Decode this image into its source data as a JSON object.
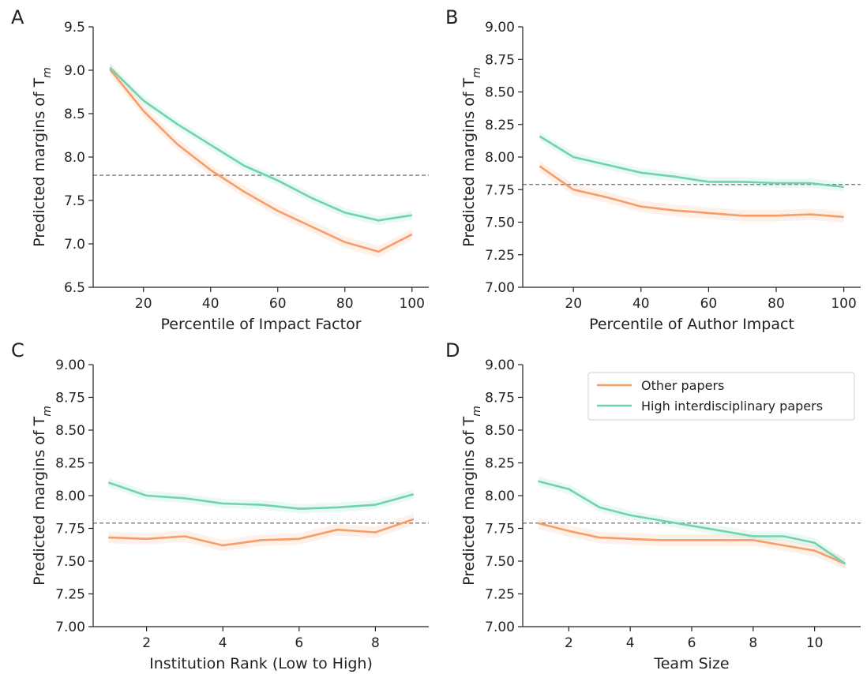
{
  "colors": {
    "other": "#f79d68",
    "high": "#6fd3b0",
    "reference_line": "#808080"
  },
  "legend": {
    "entries": [
      "Other papers",
      "High interdisciplinary papers"
    ],
    "placement": "upper-right of panel D"
  },
  "chart_data": [
    {
      "panel": "A",
      "type": "line",
      "xlabel": "Percentile of Impact Factor",
      "ylabel": "Predicted margins of T",
      "ylabel_sub": "m",
      "xlim": [
        5,
        105
      ],
      "ylim": [
        6.5,
        9.5
      ],
      "xticks": [
        20,
        40,
        60,
        80,
        100
      ],
      "yticks": [
        "6.5",
        "7.0",
        "7.5",
        "8.0",
        "8.5",
        "9.0",
        "9.5"
      ],
      "reference_y": 7.79,
      "x": [
        10,
        20,
        30,
        40,
        50,
        60,
        70,
        80,
        90,
        100
      ],
      "series": [
        {
          "name": "Other papers",
          "values": [
            9.01,
            8.53,
            8.15,
            7.85,
            7.6,
            7.38,
            7.2,
            7.02,
            6.91,
            7.11
          ]
        },
        {
          "name": "High interdisciplinary papers",
          "values": [
            9.03,
            8.65,
            8.38,
            8.14,
            7.9,
            7.73,
            7.53,
            7.36,
            7.27,
            7.33
          ]
        }
      ]
    },
    {
      "panel": "B",
      "type": "line",
      "xlabel": "Percentile of Author Impact",
      "ylabel": "Predicted margins of T",
      "ylabel_sub": "m",
      "xlim": [
        5,
        105
      ],
      "ylim": [
        7.0,
        9.0
      ],
      "xticks": [
        20,
        40,
        60,
        80,
        100
      ],
      "yticks": [
        "7.00",
        "7.25",
        "7.50",
        "7.75",
        "8.00",
        "8.25",
        "8.50",
        "8.75",
        "9.00"
      ],
      "reference_y": 7.79,
      "x": [
        10,
        20,
        30,
        40,
        50,
        60,
        70,
        80,
        90,
        100
      ],
      "series": [
        {
          "name": "Other papers",
          "values": [
            7.93,
            7.75,
            7.69,
            7.62,
            7.59,
            7.57,
            7.55,
            7.55,
            7.56,
            7.54
          ]
        },
        {
          "name": "High interdisciplinary papers",
          "values": [
            8.16,
            8.0,
            7.94,
            7.88,
            7.85,
            7.81,
            7.81,
            7.8,
            7.8,
            7.77
          ]
        }
      ]
    },
    {
      "panel": "C",
      "type": "line",
      "xlabel": "Institution Rank (Low to High)",
      "ylabel": "Predicted margins of T",
      "ylabel_sub": "m",
      "xlim": [
        0.6,
        9.4
      ],
      "ylim": [
        7.0,
        9.0
      ],
      "xticks": [
        2,
        4,
        6,
        8
      ],
      "yticks": [
        "7.00",
        "7.25",
        "7.50",
        "7.75",
        "8.00",
        "8.25",
        "8.50",
        "8.75",
        "9.00"
      ],
      "reference_y": 7.79,
      "x": [
        1,
        2,
        3,
        4,
        5,
        6,
        7,
        8,
        9
      ],
      "series": [
        {
          "name": "Other papers",
          "values": [
            7.68,
            7.67,
            7.69,
            7.62,
            7.66,
            7.67,
            7.74,
            7.72,
            7.82
          ]
        },
        {
          "name": "High interdisciplinary papers",
          "values": [
            8.1,
            8.0,
            7.98,
            7.94,
            7.93,
            7.9,
            7.91,
            7.93,
            8.01
          ]
        }
      ]
    },
    {
      "panel": "D",
      "type": "line",
      "xlabel": "Team Size",
      "ylabel": "Predicted margins of T",
      "ylabel_sub": "m",
      "xlim": [
        0.5,
        11.5
      ],
      "ylim": [
        7.0,
        9.0
      ],
      "xticks": [
        2,
        4,
        6,
        8,
        10
      ],
      "yticks": [
        "7.00",
        "7.25",
        "7.50",
        "7.75",
        "8.00",
        "8.25",
        "8.50",
        "8.75",
        "9.00"
      ],
      "reference_y": 7.79,
      "x": [
        1,
        2,
        3,
        4,
        5,
        6,
        7,
        8,
        9,
        10,
        11
      ],
      "series": [
        {
          "name": "Other papers",
          "values": [
            7.79,
            7.73,
            7.68,
            7.67,
            7.66,
            7.66,
            7.66,
            7.66,
            7.62,
            7.58,
            7.48
          ]
        },
        {
          "name": "High interdisciplinary papers",
          "values": [
            8.11,
            8.05,
            7.91,
            7.85,
            7.81,
            7.77,
            7.73,
            7.69,
            7.69,
            7.64,
            7.48
          ]
        }
      ]
    }
  ]
}
